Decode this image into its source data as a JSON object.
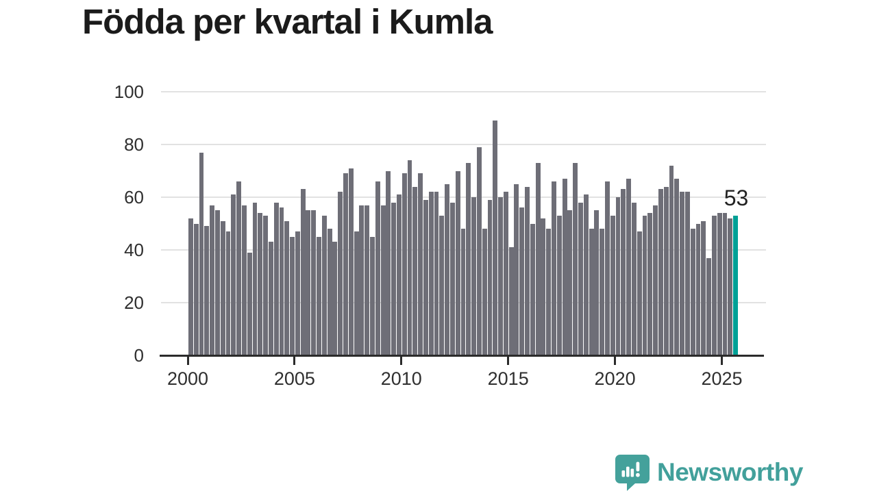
{
  "title": "Födda per kvartal i Kumla",
  "annotation": {
    "value_label": "53"
  },
  "branding": {
    "name": "Newsworthy"
  },
  "colors": {
    "bar": "#6e6e77",
    "highlight": "#00a096",
    "gridline": "#e2e2e2",
    "axis": "#2b2b2b",
    "label_text": "#2f2f2f",
    "title_text": "#1b1b1b",
    "logo_teal": "#44a19b"
  },
  "chart_data": {
    "type": "bar",
    "title": "Födda per kvartal i Kumla",
    "x_unit": "quarter",
    "start_quarter": "2000-Q1",
    "end_quarter": "2025-Q3",
    "values": [
      52,
      50,
      77,
      49,
      57,
      55,
      51,
      47,
      61,
      66,
      57,
      39,
      58,
      54,
      53,
      43,
      58,
      56,
      51,
      45,
      47,
      63,
      55,
      55,
      45,
      53,
      48,
      43,
      62,
      69,
      71,
      47,
      57,
      57,
      45,
      66,
      57,
      70,
      58,
      61,
      69,
      74,
      64,
      69,
      59,
      62,
      62,
      53,
      65,
      58,
      70,
      48,
      73,
      60,
      79,
      48,
      59,
      89,
      60,
      62,
      41,
      65,
      56,
      64,
      50,
      73,
      52,
      48,
      66,
      53,
      67,
      55,
      73,
      58,
      61,
      48,
      55,
      48,
      66,
      53,
      60,
      63,
      67,
      58,
      47,
      53,
      54,
      57,
      63,
      64,
      72,
      67,
      62,
      62,
      48,
      50,
      51,
      37,
      53,
      54,
      54,
      52,
      53
    ],
    "highlight_last": true,
    "last_value": 53,
    "last_value_label": "53",
    "xticks": [
      2000,
      2005,
      2010,
      2015,
      2020,
      2025
    ],
    "yticks": [
      0,
      20,
      40,
      60,
      80,
      100
    ],
    "ylim": [
      0,
      100
    ],
    "xlabel": "",
    "ylabel": "",
    "grid": "horizontal",
    "legend": "none"
  }
}
